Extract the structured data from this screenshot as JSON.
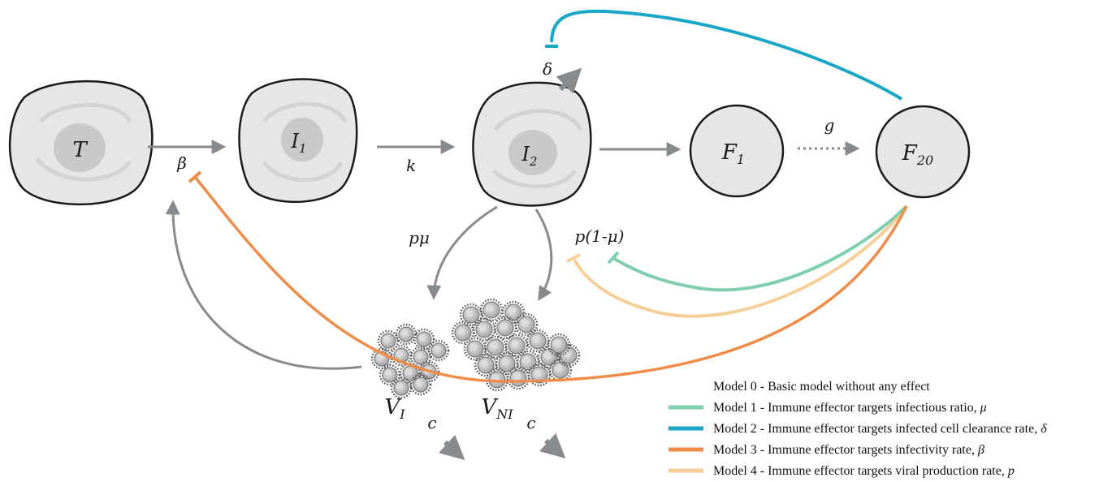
{
  "diagram": {
    "cells": {
      "T": {
        "label": "T"
      },
      "I1": {
        "label": "I",
        "sub": "1"
      },
      "I2": {
        "label": "I",
        "sub": "2"
      },
      "F1": {
        "label": "F",
        "sub": "1"
      },
      "F20": {
        "label": "F",
        "sub": "20"
      }
    },
    "rates": {
      "beta": "β",
      "k": "k",
      "delta": "δ",
      "g": "g",
      "p_mu": "pμ",
      "p_one_minus_mu": "p(1-μ)",
      "c_infectious": "c",
      "c_noninfectious": "c"
    },
    "virions": {
      "VI": {
        "label": "V",
        "sub": "I"
      },
      "VNI": {
        "label": "V",
        "sub": "NI"
      }
    }
  },
  "legend": {
    "items": [
      {
        "label": "Model 0 - Basic model without any effect",
        "symbol": "",
        "color": "none"
      },
      {
        "label": "Model 1 - Immune effector targets infectious ratio, ",
        "symbol": "μ",
        "color": "#7fcfae"
      },
      {
        "label": "Model 2 - Immune effector targets infected cell clearance rate, ",
        "symbol": "δ",
        "color": "#1aa7c7"
      },
      {
        "label": "Model 3 - Immune effector targets infectivity rate, ",
        "symbol": "β",
        "color": "#ef8c4a"
      },
      {
        "label": "Model 4 - Immune effector targets viral production rate, ",
        "symbol": "p",
        "color": "#f6cf98"
      }
    ]
  },
  "colors": {
    "arrow": "#878b8e",
    "cell_fill": "#e6e6e6",
    "cell_nucleus": "#c9c9c9",
    "cell_stroke": "#1a1a1a",
    "model1": "#7fcfae",
    "model2": "#1aa7c7",
    "model3": "#ef8c4a",
    "model4": "#f6cf98"
  }
}
